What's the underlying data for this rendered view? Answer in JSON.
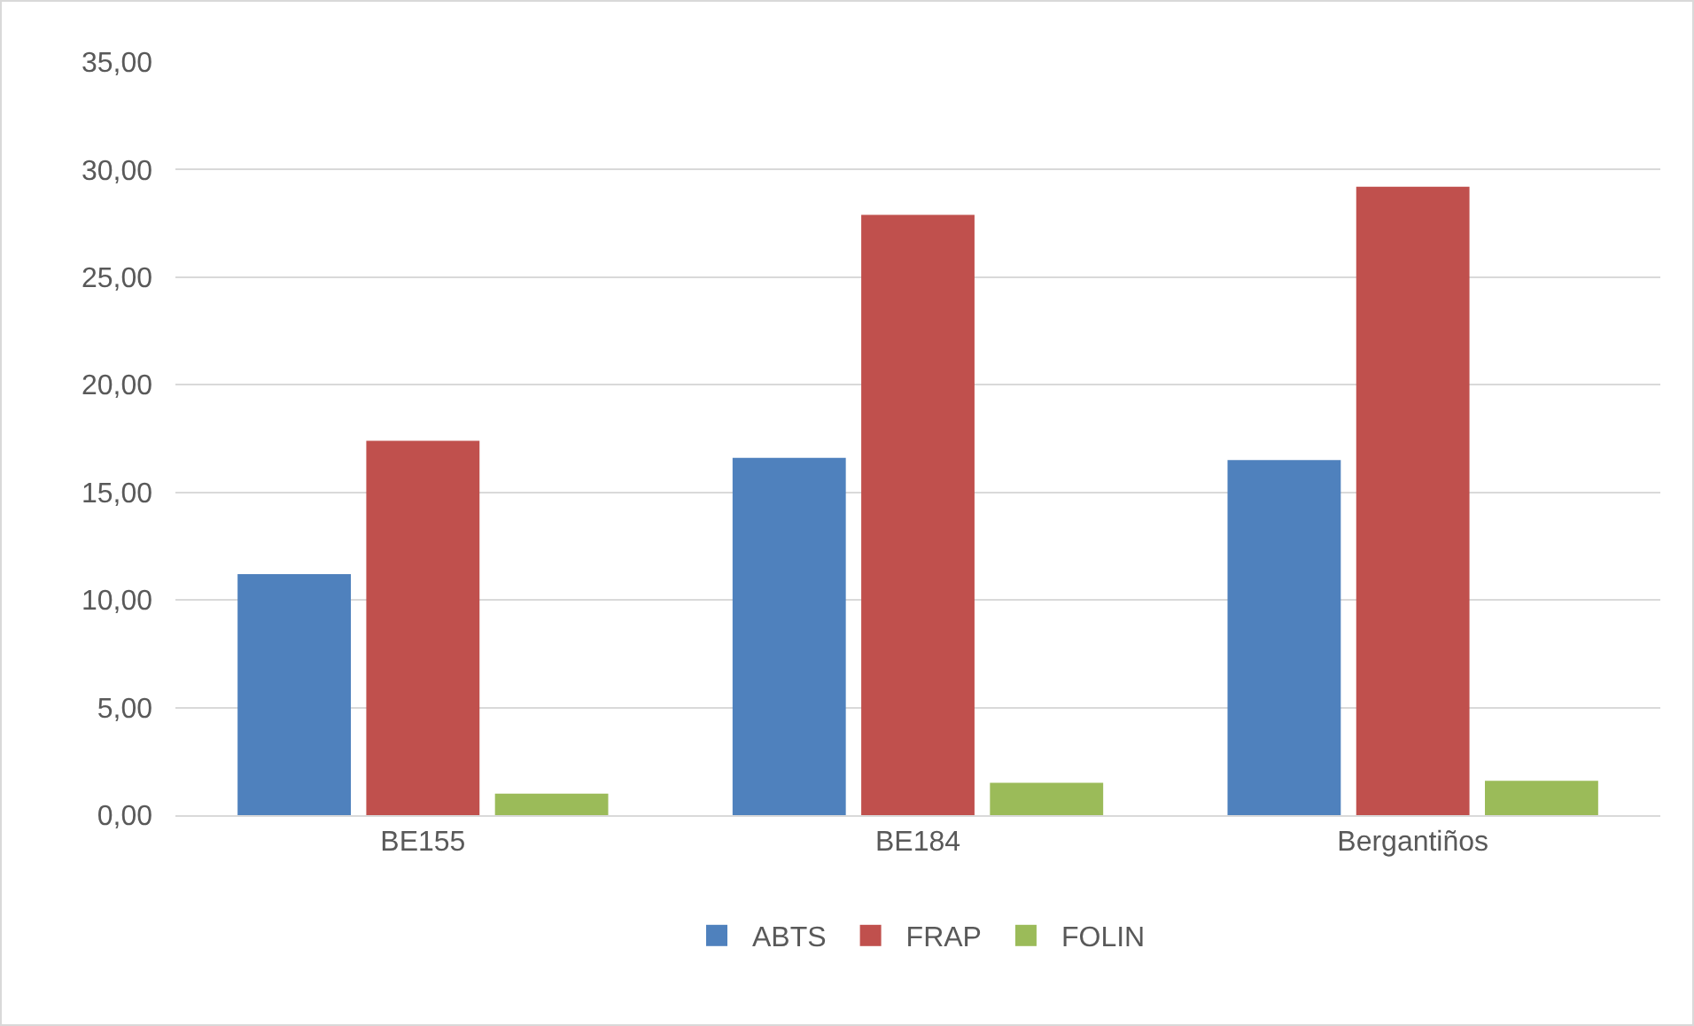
{
  "chart_data": {
    "type": "bar",
    "categories": [
      "BE155",
      "BE184",
      "Bergantiños"
    ],
    "series": [
      {
        "name": "ABTS",
        "color": "#4f81bd",
        "values": [
          11.2,
          16.6,
          16.5
        ]
      },
      {
        "name": "FRAP",
        "color": "#c0504d",
        "values": [
          17.4,
          27.9,
          29.2
        ]
      },
      {
        "name": "FOLIN",
        "color": "#9bbb59",
        "values": [
          1.0,
          1.5,
          1.6
        ]
      }
    ],
    "ylim": [
      0,
      35
    ],
    "yticks": [
      {
        "value": 0,
        "label": "0,00"
      },
      {
        "value": 5,
        "label": "5,00"
      },
      {
        "value": 10,
        "label": "10,00"
      },
      {
        "value": 15,
        "label": "15,00"
      },
      {
        "value": 20,
        "label": "20,00"
      },
      {
        "value": 25,
        "label": "25,00"
      },
      {
        "value": 30,
        "label": "30,00"
      },
      {
        "value": 35,
        "label": "35,00"
      }
    ],
    "grid": "y",
    "legend": "bottom"
  }
}
